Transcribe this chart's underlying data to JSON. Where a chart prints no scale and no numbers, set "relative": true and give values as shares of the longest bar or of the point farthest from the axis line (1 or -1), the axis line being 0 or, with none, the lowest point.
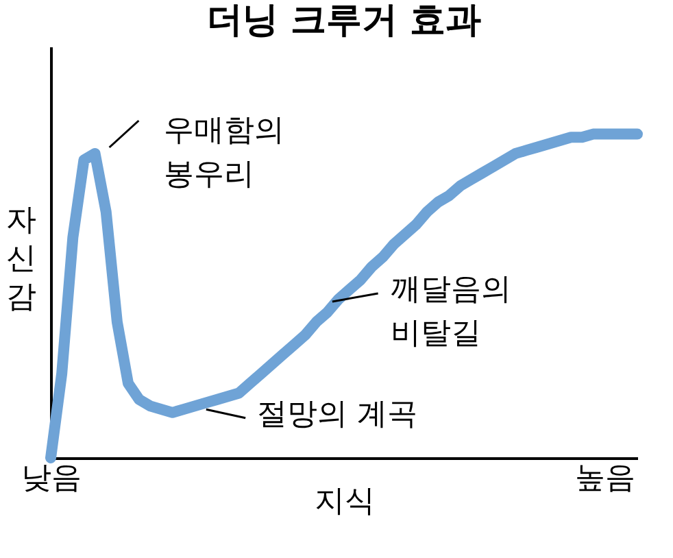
{
  "chart_data": {
    "type": "line",
    "title": "더닝 크루거 효과",
    "xlabel": "지식",
    "ylabel": "자신감",
    "relative": true,
    "categories": [
      "낮음",
      null,
      null,
      null,
      null,
      null,
      null,
      null,
      null,
      null,
      null,
      null,
      null,
      null,
      null,
      null,
      null,
      null,
      null,
      null,
      null,
      null,
      null,
      null,
      null,
      null,
      null,
      null,
      null,
      null,
      null,
      null,
      null,
      null,
      null,
      null,
      null,
      null,
      null,
      null,
      null,
      null,
      null,
      null,
      null,
      null,
      null,
      null,
      null,
      null,
      "높음",
      null,
      null,
      null
    ],
    "series": [
      {
        "color": "#6fa3d6",
        "values": [
          0,
          0.26,
          0.68,
          0.92,
          0.94,
          0.76,
          0.42,
          0.23,
          0.18,
          0.16,
          0.15,
          0.14,
          0.15,
          0.16,
          0.17,
          0.18,
          0.19,
          0.2,
          0.23,
          0.26,
          0.29,
          0.32,
          0.35,
          0.38,
          0.42,
          0.45,
          0.49,
          0.52,
          0.55,
          0.59,
          0.62,
          0.66,
          0.69,
          0.72,
          0.76,
          0.79,
          0.81,
          0.84,
          0.86,
          0.88,
          0.9,
          0.92,
          0.94,
          0.95,
          0.96,
          0.97,
          0.98,
          0.99,
          0.99,
          1.0,
          1.0,
          1.0,
          1.0,
          1.0
        ]
      }
    ],
    "annotations": [
      "우매함의\n봉우리",
      "절망의 계곡",
      "깨달음의\n비탈길"
    ],
    "line_style": "solid"
  }
}
